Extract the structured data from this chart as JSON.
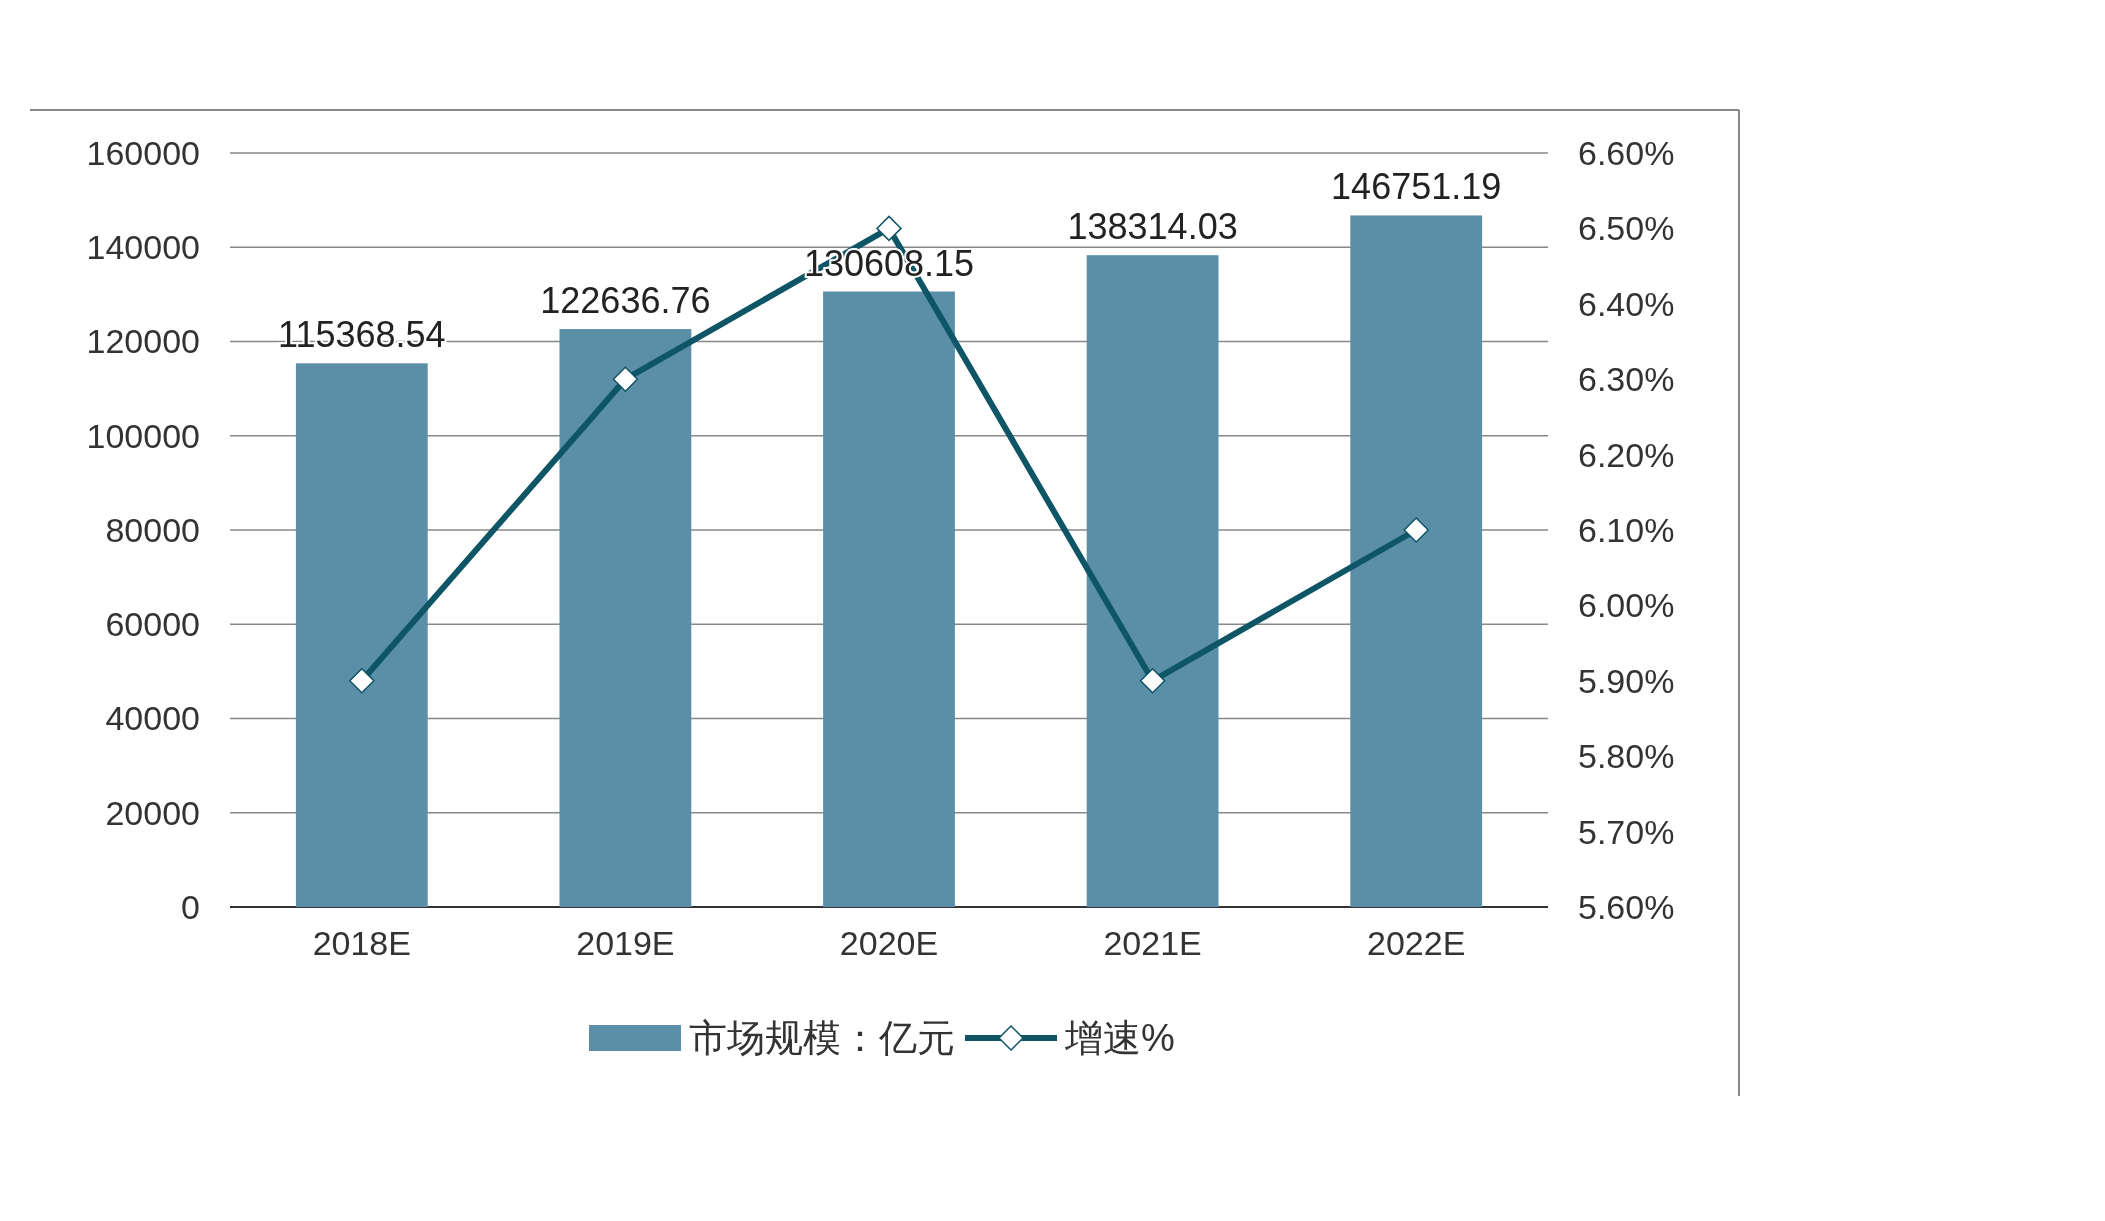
{
  "chart_data": {
    "type": "bar",
    "categories": [
      "2018E",
      "2019E",
      "2020E",
      "2021E",
      "2022E"
    ],
    "series": [
      {
        "name": "市场规模：亿元",
        "color": "#5b8fa8",
        "values": [
          115368.54,
          122636.76,
          130608.15,
          138314.03,
          146751.19
        ],
        "value_labels": [
          "115368.54",
          "122636.76",
          "130608.15",
          "138314.03",
          "146751.19"
        ]
      },
      {
        "name": "增速%",
        "type": "line",
        "axis": "y2",
        "color": "#0e5566",
        "values": [
          5.9,
          6.3,
          6.5,
          5.9,
          6.1
        ]
      }
    ],
    "ylim": [
      0,
      160000
    ],
    "yticks": [
      0,
      20000,
      40000,
      60000,
      80000,
      100000,
      120000,
      140000,
      160000
    ],
    "y2lim": [
      5.6,
      6.6
    ],
    "y2ticks": [
      {
        "value": 5.6,
        "label": "5.60%"
      },
      {
        "value": 5.7,
        "label": "5.70%"
      },
      {
        "value": 5.8,
        "label": "5.80%"
      },
      {
        "value": 5.9,
        "label": "5.90%"
      },
      {
        "value": 6.0,
        "label": "6.00%"
      },
      {
        "value": 6.1,
        "label": "6.10%"
      },
      {
        "value": 6.2,
        "label": "6.20%"
      },
      {
        "value": 6.3,
        "label": "6.30%"
      },
      {
        "value": 6.4,
        "label": "6.40%"
      },
      {
        "value": 6.5,
        "label": "6.50%"
      },
      {
        "value": 6.6,
        "label": "6.60%"
      }
    ],
    "grid": "y",
    "legend": "bottom",
    "marker": "diamond",
    "line_style": "solid"
  }
}
